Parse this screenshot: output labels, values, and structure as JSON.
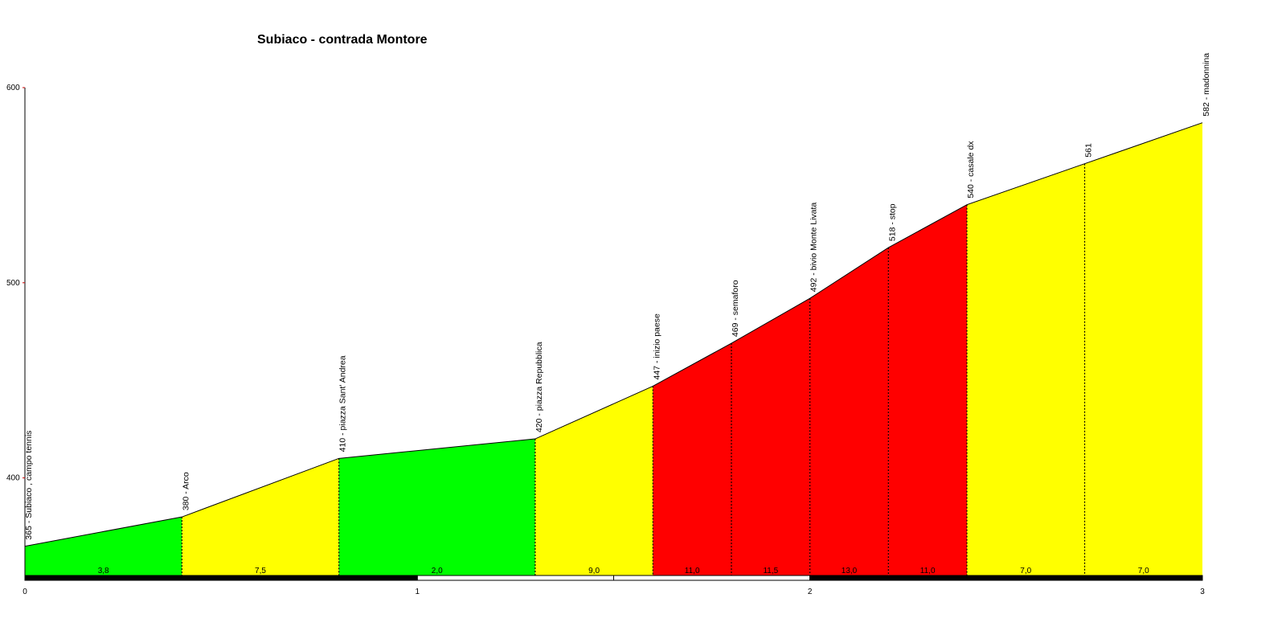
{
  "chart_data": {
    "type": "area",
    "title": "Subiaco - contrada Montore",
    "xlabel": "",
    "ylabel": "",
    "xlim": [
      0,
      3
    ],
    "ylim": [
      350,
      600
    ],
    "x_ticks": [
      "0",
      "1",
      "2",
      "3"
    ],
    "y_ticks": [
      "400",
      "500",
      "600"
    ],
    "grid": false,
    "colors": {
      "easy": "#00ff00",
      "medium": "#ffff00",
      "hard": "#ff0000",
      "outline": "#000000",
      "axis_tick": "#cc0000"
    },
    "points": [
      {
        "x": 0.0,
        "y": 365,
        "label": "365 - Subiaco , campo tennis"
      },
      {
        "x": 0.4,
        "y": 380,
        "label": "380 - Arco"
      },
      {
        "x": 0.8,
        "y": 410,
        "label": "410 - piazza Sant' Andrea"
      },
      {
        "x": 1.3,
        "y": 420,
        "label": "420 - piazza Repubblica"
      },
      {
        "x": 1.6,
        "y": 447,
        "label": "447 - inizio paese"
      },
      {
        "x": 1.8,
        "y": 469,
        "label": "469 - semaforo"
      },
      {
        "x": 2.0,
        "y": 492,
        "label": "492 - bivio Monte Livata"
      },
      {
        "x": 2.2,
        "y": 518,
        "label": "518 - stop"
      },
      {
        "x": 2.4,
        "y": 540,
        "label": "540 - casale dx"
      },
      {
        "x": 2.7,
        "y": 561,
        "label": "561"
      },
      {
        "x": 3.0,
        "y": 582,
        "label": "582 - madonnina"
      }
    ],
    "segments": [
      {
        "grade": "3,8",
        "category": "easy"
      },
      {
        "grade": "7,5",
        "category": "medium"
      },
      {
        "grade": "2,0",
        "category": "easy"
      },
      {
        "grade": "9,0",
        "category": "medium"
      },
      {
        "grade": "11,0",
        "category": "hard"
      },
      {
        "grade": "11,5",
        "category": "hard"
      },
      {
        "grade": "13,0",
        "category": "hard"
      },
      {
        "grade": "11,0",
        "category": "hard"
      },
      {
        "grade": "7,0",
        "category": "medium"
      },
      {
        "grade": "7,0",
        "category": "medium"
      }
    ]
  }
}
